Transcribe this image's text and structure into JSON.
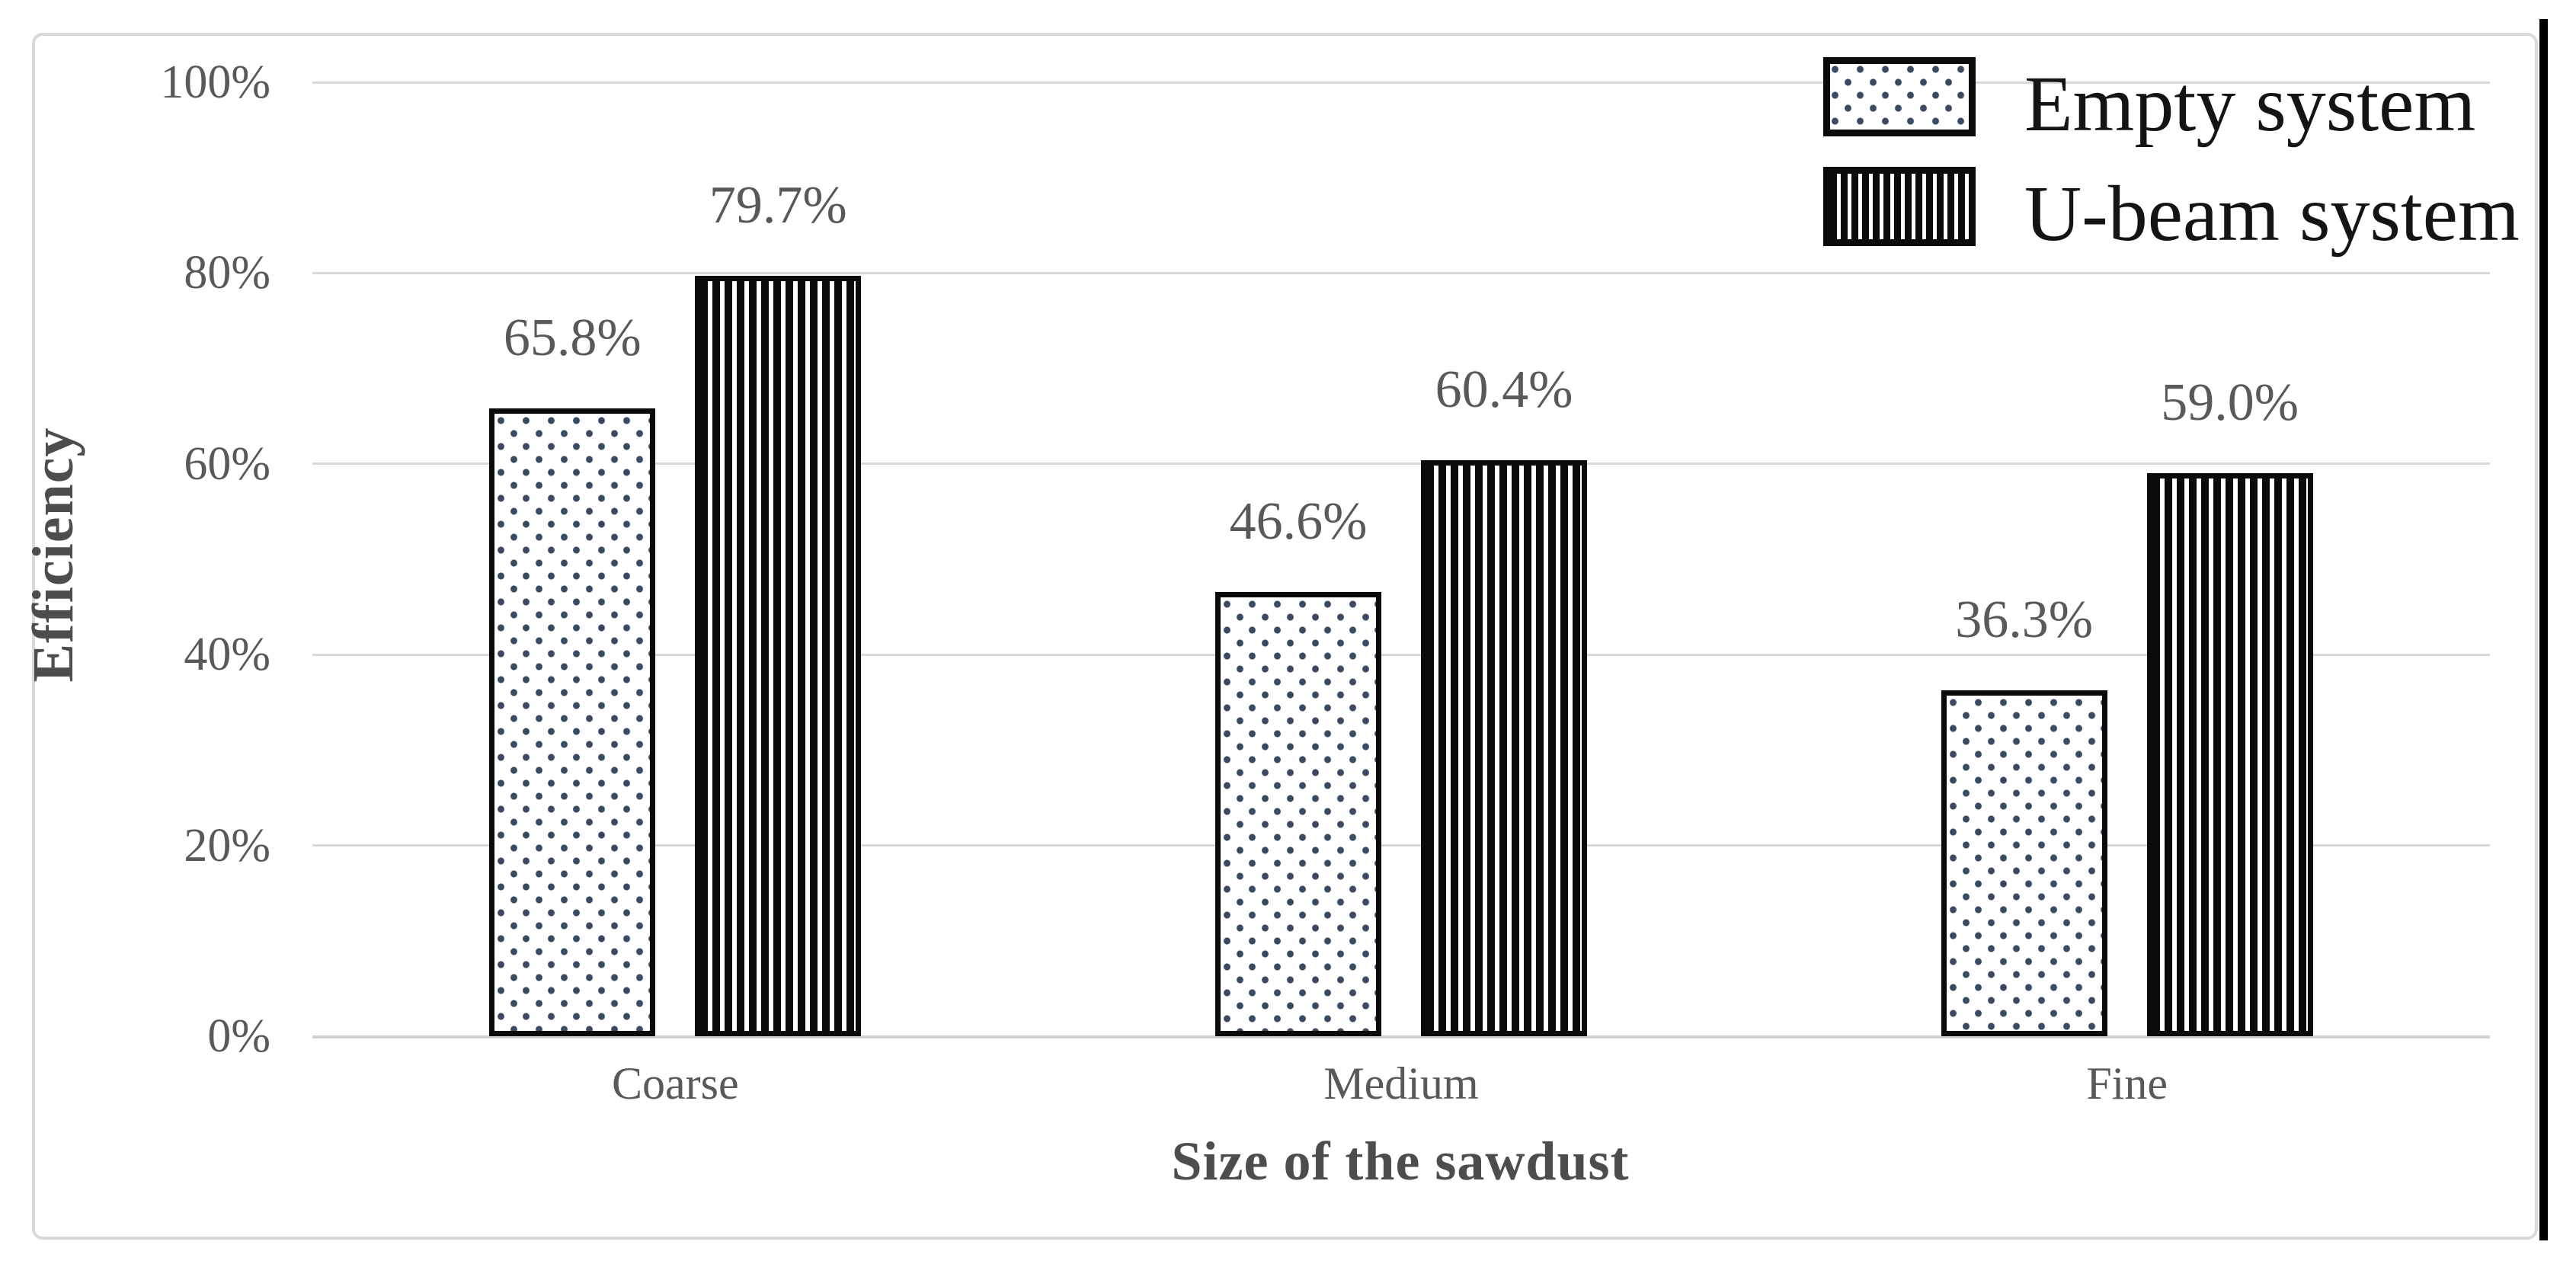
{
  "chart_data": {
    "type": "bar",
    "title": "",
    "xlabel": "Size of the sawdust",
    "ylabel": "Efficiency",
    "categories": [
      "Coarse",
      "Medium",
      "Fine"
    ],
    "series": [
      {
        "name": "Empty system",
        "pattern": "dots",
        "values": [
          65.8,
          46.6,
          36.3
        ],
        "labels": [
          "65.8%",
          "46.6%",
          "36.3%"
        ]
      },
      {
        "name": "U-beam system",
        "pattern": "vertical-stripes",
        "values": [
          79.7,
          60.4,
          59.0
        ],
        "labels": [
          "79.7%",
          "60.4%",
          "59.0%"
        ]
      }
    ],
    "y_ticks": [
      {
        "label": "100%",
        "value": 100
      },
      {
        "label": "80%",
        "value": 80
      },
      {
        "label": "60%",
        "value": 60
      },
      {
        "label": "40%",
        "value": 40
      },
      {
        "label": "20%",
        "value": 20
      },
      {
        "label": "0%",
        "value": 0
      }
    ],
    "ylim": [
      0,
      100
    ],
    "grid": true,
    "legend_position": "top-right"
  },
  "colors": {
    "grid": "#d9d9d9",
    "tick_text": "#595959",
    "axis_title_text": "#4d4d4d",
    "legend_text": "#141414",
    "bar_border": "#0b0b0b",
    "dot_fill": "#3b4a63",
    "stripe_fill": "#0b0b0b",
    "frame_border": "#d9d9d9",
    "right_rule": "#000000"
  }
}
